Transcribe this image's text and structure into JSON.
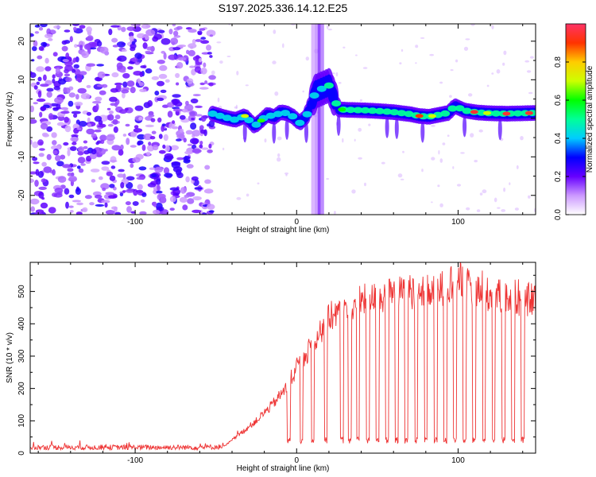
{
  "title": "S197.2025.336.14.12.E25",
  "chart_data": [
    {
      "type": "heatmap",
      "xlabel": "Height of straight line (km)",
      "ylabel": "Frequency (Hz)",
      "xlim": [
        -165,
        148
      ],
      "ylim": [
        -25,
        24.5
      ],
      "xticks": [
        -100,
        0,
        100
      ],
      "yticks": [
        -20,
        -10,
        0,
        10,
        20
      ],
      "colorbar": {
        "label": "Normalized spectral amplitude",
        "range": [
          0,
          1
        ],
        "ticks": [
          0.0,
          0.2,
          0.4,
          0.6,
          0.8
        ],
        "colors": [
          "#ffffff",
          "#cc99ff",
          "#6600ff",
          "#0000ff",
          "#00ccff",
          "#00ff99",
          "#00ff00",
          "#ccff00",
          "#ffcc00",
          "#ff3300",
          "#ff3366"
        ]
      },
      "ridge": {
        "x": [
          -52,
          -45,
          -38,
          -32,
          -26,
          -22,
          -18,
          -14,
          -10,
          -6,
          -2,
          2,
          6,
          12,
          20,
          26,
          32,
          40,
          50,
          60,
          70,
          76,
          82,
          88,
          94,
          98,
          104,
          112,
          120,
          130,
          140,
          148
        ],
        "y": [
          1.2,
          0.3,
          -0.4,
          0.6,
          -2.0,
          -0.6,
          1.0,
          0.3,
          1.6,
          1.3,
          0.4,
          -1.2,
          0.5,
          7.0,
          8.5,
          2.3,
          2.2,
          2.1,
          1.9,
          1.6,
          1.1,
          0.6,
          0.4,
          0.9,
          1.4,
          3.2,
          2.0,
          1.5,
          1.3,
          1.2,
          1.3,
          1.4
        ]
      },
      "noise_region": [
        -165,
        -52
      ]
    },
    {
      "type": "line",
      "xlabel": "Height of straight line (km)",
      "ylabel": "SNR (10 * v/v)",
      "xlim": [
        -165,
        148
      ],
      "ylim": [
        0,
        590
      ],
      "xticks": [
        -100,
        0,
        100
      ],
      "yticks": [
        0,
        100,
        200,
        300,
        400,
        500
      ],
      "color": "#ee3333",
      "envelope": {
        "x": [
          -165,
          -60,
          -45,
          -35,
          -25,
          -15,
          -5,
          0,
          5,
          10,
          15,
          20,
          30,
          40,
          50,
          60,
          70,
          80,
          90,
          100,
          110,
          120,
          130,
          140,
          148
        ],
        "y": [
          18,
          18,
          20,
          60,
          100,
          150,
          210,
          260,
          300,
          340,
          380,
          420,
          450,
          470,
          480,
          490,
          500,
          495,
          510,
          540,
          505,
          490,
          480,
          470,
          480
        ]
      },
      "dip_level": 30,
      "dip_x": [
        -5,
        3,
        10,
        18,
        28,
        33,
        38,
        44,
        50,
        56,
        62,
        68,
        74,
        80,
        86,
        92,
        98,
        104,
        110,
        116,
        122,
        128,
        134,
        140
      ]
    }
  ]
}
